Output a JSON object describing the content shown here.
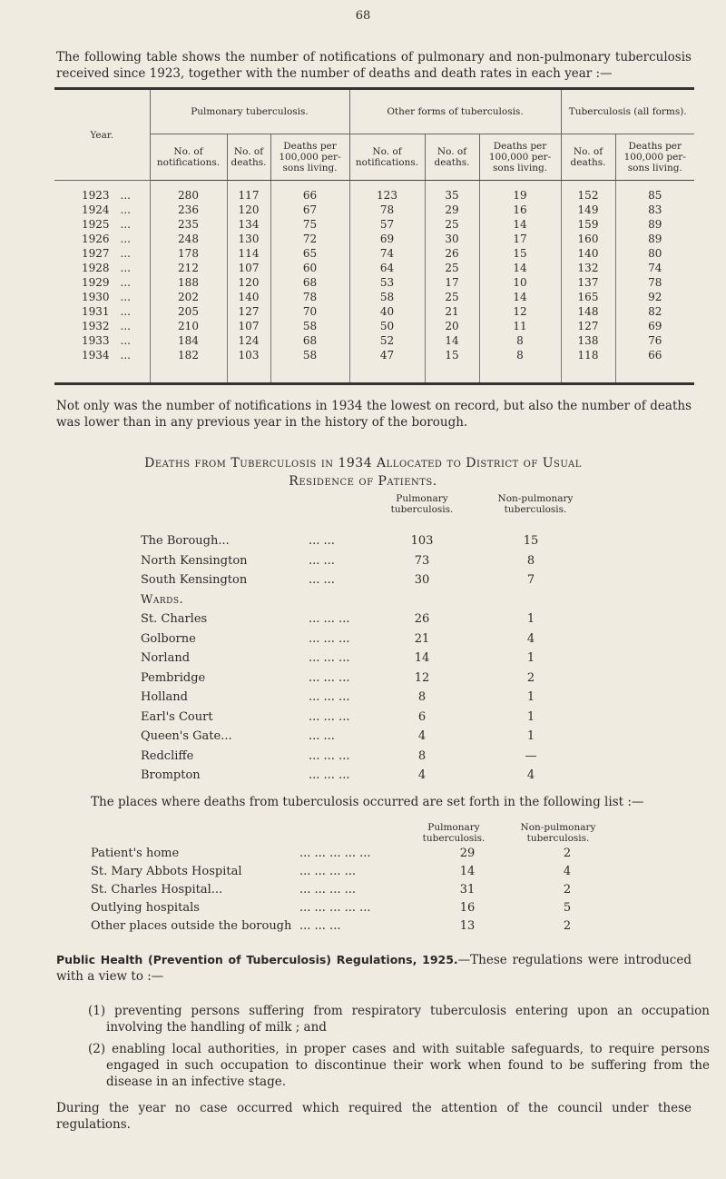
{
  "page_number": "68",
  "intro": "The following table shows the number of notifications of pulmonary and non-pulmonary tuberculosis received since 1923, together with the number of deaths and death rates in each year :—",
  "table": {
    "year_header": "Year.",
    "groups": [
      "Pulmonary tuberculosis.",
      "Other forms of tuberculosis.",
      "Tuberculosis (all forms)."
    ],
    "columns": [
      "No. of notifications.",
      "No. of deaths.",
      "Deaths per 100,000 per- sons living.",
      "No. of notifications.",
      "No. of deaths.",
      "Deaths per 100,000 per- sons living.",
      "No. of deaths.",
      "Deaths per 100,000 per- sons living."
    ],
    "rows": [
      [
        "1923",
        "280",
        "117",
        "66",
        "123",
        "35",
        "19",
        "152",
        "85"
      ],
      [
        "1924",
        "236",
        "120",
        "67",
        "78",
        "29",
        "16",
        "149",
        "83"
      ],
      [
        "1925",
        "235",
        "134",
        "75",
        "57",
        "25",
        "14",
        "159",
        "89"
      ],
      [
        "1926",
        "248",
        "130",
        "72",
        "69",
        "30",
        "17",
        "160",
        "89"
      ],
      [
        "1927",
        "178",
        "114",
        "65",
        "74",
        "26",
        "15",
        "140",
        "80"
      ],
      [
        "1928",
        "212",
        "107",
        "60",
        "64",
        "25",
        "14",
        "132",
        "74"
      ],
      [
        "1929",
        "188",
        "120",
        "68",
        "53",
        "17",
        "10",
        "137",
        "78"
      ],
      [
        "1930",
        "202",
        "140",
        "78",
        "58",
        "25",
        "14",
        "165",
        "92"
      ],
      [
        "1931",
        "205",
        "127",
        "70",
        "40",
        "21",
        "12",
        "148",
        "82"
      ],
      [
        "1932",
        "210",
        "107",
        "58",
        "50",
        "20",
        "11",
        "127",
        "69"
      ],
      [
        "1933",
        "184",
        "124",
        "68",
        "52",
        "14",
        "8",
        "138",
        "76"
      ],
      [
        "1934",
        "182",
        "103",
        "58",
        "47",
        "15",
        "8",
        "118",
        "66"
      ]
    ]
  },
  "para2": "Not only was the number of notifications in 1934 the lowest on record, but also the number of deaths was lower than in any previous year in the history of the borough.",
  "districts": {
    "heading1": "Deaths from Tuberculosis in 1934 Allocated to District of Usual",
    "heading2": "Residence of Patients.",
    "col1": "Pulmonary tuberculosis.",
    "col2": "Non-pulmonary tuberculosis.",
    "rows": [
      {
        "label": "The Borough...",
        "dots": "... ...",
        "p": "103",
        "n": "15"
      },
      {
        "label": "North Kensington",
        "dots": "... ...",
        "p": "73",
        "n": "8"
      },
      {
        "label": "South Kensington",
        "dots": "... ...",
        "p": "30",
        "n": "7"
      },
      {
        "label": "Wards.",
        "dots": "",
        "p": "",
        "n": ""
      },
      {
        "label": "St. Charles",
        "dots": "... ... ...",
        "p": "26",
        "n": "1"
      },
      {
        "label": "Golborne",
        "dots": "... ... ...",
        "p": "21",
        "n": "4"
      },
      {
        "label": "Norland",
        "dots": "... ... ...",
        "p": "14",
        "n": "1"
      },
      {
        "label": "Pembridge",
        "dots": "... ... ...",
        "p": "12",
        "n": "2"
      },
      {
        "label": "Holland",
        "dots": "... ... ...",
        "p": "8",
        "n": "1"
      },
      {
        "label": "Earl's Court",
        "dots": "... ... ...",
        "p": "6",
        "n": "1"
      },
      {
        "label": "Queen's Gate...",
        "dots": "... ...",
        "p": "4",
        "n": "1"
      },
      {
        "label": "Redcliffe",
        "dots": "... ... ...",
        "p": "8",
        "n": "—"
      },
      {
        "label": "Brompton",
        "dots": "... ... ...",
        "p": "4",
        "n": "4"
      }
    ]
  },
  "places": {
    "intro": "The places where deaths from tuberculosis occurred are set forth in the following list :—",
    "col1": "Pulmonary tuberculosis.",
    "col2": "Non-pulmonary tuberculosis.",
    "rows": [
      {
        "label": "Patient's home",
        "dots": "... ... ... ... ...",
        "p": "29",
        "n": "2"
      },
      {
        "label": "St. Mary Abbots Hospital",
        "dots": "... ... ... ...",
        "p": "14",
        "n": "4"
      },
      {
        "label": "St. Charles Hospital...",
        "dots": "... ... ... ...",
        "p": "31",
        "n": "2"
      },
      {
        "label": "Outlying hospitals",
        "dots": "... ... ... ... ...",
        "p": "16",
        "n": "5"
      },
      {
        "label": "Other places outside the borough",
        "dots": "... ... ...",
        "p": "13",
        "n": "2"
      }
    ]
  },
  "regs": {
    "title": "Public Health (Prevention of Tuberculosis) Regulations, 1925.",
    "text": "—These regulations were introduced with a view to :—",
    "items": [
      {
        "num": "(1)",
        "text": "preventing persons suffering from respiratory tuberculosis entering upon an occupation involving the handling of milk ; and"
      },
      {
        "num": "(2)",
        "text": "enabling local authorities, in proper cases and with suitable safeguards, to require persons engaged in such occupation to discontinue their work when found to be suffering from the disease in an infective stage."
      }
    ],
    "closing": "During the year no case occurred which required the attention of the council under these regulations."
  }
}
